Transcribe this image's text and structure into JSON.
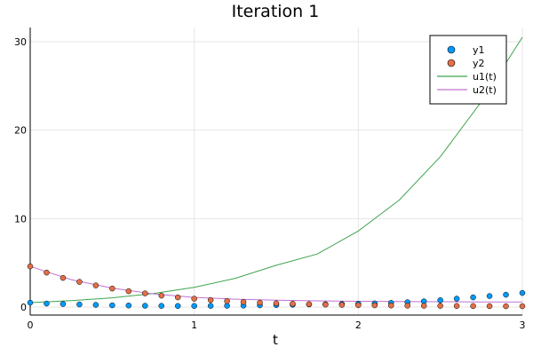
{
  "chart_data": {
    "type": "scatter",
    "title": "Iteration 1",
    "xlabel": "t",
    "ylabel": "",
    "xlim": [
      0,
      3
    ],
    "ylim": [
      -0.9,
      31.6
    ],
    "xticks": [
      0,
      1,
      2,
      3
    ],
    "yticks": [
      0,
      10,
      20,
      30
    ],
    "grid": true,
    "legend_position": "top-right",
    "series": [
      {
        "name": "y1",
        "kind": "scatter",
        "color": "#009AFA",
        "x": [
          0,
          0.1,
          0.2,
          0.3,
          0.4,
          0.5,
          0.6,
          0.7,
          0.8,
          0.9,
          1.0,
          1.1,
          1.2,
          1.3,
          1.4,
          1.5,
          1.6,
          1.7,
          1.8,
          1.9,
          2.0,
          2.1,
          2.2,
          2.3,
          2.4,
          2.5,
          2.6,
          2.7,
          2.8,
          2.9,
          3.0
        ],
        "y": [
          0.5,
          0.4,
          0.35,
          0.3,
          0.25,
          0.2,
          0.18,
          0.15,
          0.14,
          0.13,
          0.13,
          0.14,
          0.15,
          0.17,
          0.2,
          0.23,
          0.27,
          0.3,
          0.32,
          0.35,
          0.38,
          0.42,
          0.48,
          0.55,
          0.65,
          0.78,
          0.95,
          1.1,
          1.25,
          1.4,
          1.6
        ]
      },
      {
        "name": "y2",
        "kind": "scatter",
        "color": "#E36F47",
        "x": [
          0,
          0.1,
          0.2,
          0.3,
          0.4,
          0.5,
          0.6,
          0.7,
          0.8,
          0.9,
          1.0,
          1.1,
          1.2,
          1.3,
          1.4,
          1.5,
          1.6,
          1.7,
          1.8,
          1.9,
          2.0,
          2.1,
          2.2,
          2.3,
          2.4,
          2.5,
          2.6,
          2.7,
          2.8,
          2.9,
          3.0
        ],
        "y": [
          4.6,
          3.9,
          3.3,
          2.85,
          2.45,
          2.1,
          1.8,
          1.55,
          1.3,
          1.1,
          0.95,
          0.8,
          0.68,
          0.58,
          0.5,
          0.43,
          0.38,
          0.33,
          0.28,
          0.25,
          0.22,
          0.2,
          0.18,
          0.16,
          0.15,
          0.14,
          0.13,
          0.12,
          0.11,
          0.1,
          0.1
        ]
      },
      {
        "name": "u1(t)",
        "kind": "line",
        "color": "#3EA44E",
        "x": [
          0,
          0.25,
          0.5,
          0.75,
          1.0,
          1.25,
          1.5,
          1.75,
          2.0,
          2.25,
          2.5,
          2.75,
          3.0
        ],
        "y": [
          0.5,
          0.73,
          1.05,
          1.53,
          2.23,
          3.25,
          4.73,
          6.0,
          8.6,
          12.1,
          17.0,
          23.2,
          30.5
        ]
      },
      {
        "name": "u2(t)",
        "kind": "line",
        "color": "#C271D2",
        "x": [
          0,
          0.25,
          0.5,
          0.75,
          1.0,
          1.25,
          1.5,
          1.75,
          2.0,
          2.25,
          2.5,
          2.75,
          3.0
        ],
        "y": [
          4.6,
          3.1,
          2.15,
          1.5,
          1.1,
          0.9,
          0.78,
          0.7,
          0.65,
          0.62,
          0.6,
          0.58,
          0.57
        ]
      }
    ]
  }
}
